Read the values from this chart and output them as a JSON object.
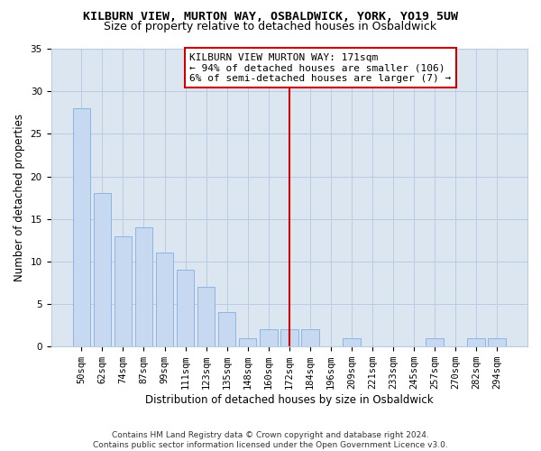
{
  "title": "KILBURN VIEW, MURTON WAY, OSBALDWICK, YORK, YO19 5UW",
  "subtitle": "Size of property relative to detached houses in Osbaldwick",
  "xlabel": "Distribution of detached houses by size in Osbaldwick",
  "ylabel": "Number of detached properties",
  "bar_labels": [
    "50sqm",
    "62sqm",
    "74sqm",
    "87sqm",
    "99sqm",
    "111sqm",
    "123sqm",
    "135sqm",
    "148sqm",
    "160sqm",
    "172sqm",
    "184sqm",
    "196sqm",
    "209sqm",
    "221sqm",
    "233sqm",
    "245sqm",
    "257sqm",
    "270sqm",
    "282sqm",
    "294sqm"
  ],
  "bar_values": [
    28,
    18,
    13,
    14,
    11,
    9,
    7,
    4,
    1,
    2,
    2,
    2,
    0,
    1,
    0,
    0,
    0,
    1,
    0,
    1,
    1
  ],
  "bar_color": "#c6d9f1",
  "bar_edge_color": "#8db4e2",
  "vline_x_idx": 10,
  "vline_color": "#cc0000",
  "annotation_title": "KILBURN VIEW MURTON WAY: 171sqm",
  "annotation_line1": "← 94% of detached houses are smaller (106)",
  "annotation_line2": "6% of semi-detached houses are larger (7) →",
  "annotation_box_color": "#ffffff",
  "annotation_box_edge": "#cc0000",
  "ylim": [
    0,
    35
  ],
  "yticks": [
    0,
    5,
    10,
    15,
    20,
    25,
    30,
    35
  ],
  "footer1": "Contains HM Land Registry data © Crown copyright and database right 2024.",
  "footer2": "Contains public sector information licensed under the Open Government Licence v3.0.",
  "background_color": "#ffffff",
  "plot_bg_color": "#dce6f1",
  "grid_color": "#b8cce4",
  "title_fontsize": 9.5,
  "subtitle_fontsize": 9,
  "axis_label_fontsize": 8.5,
  "tick_fontsize": 7.5,
  "footer_fontsize": 6.5
}
